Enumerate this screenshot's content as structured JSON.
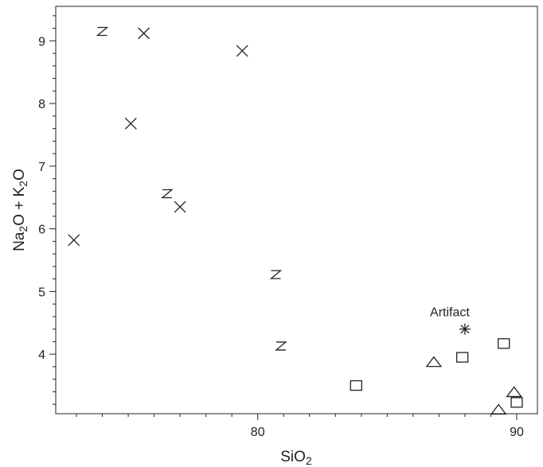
{
  "chart_data": {
    "type": "scatter",
    "xlabel": {
      "base": "SiO",
      "sub": "2"
    },
    "ylabel": {
      "p1": "Na",
      "s1": "2",
      "p2": "O + K",
      "s2": "2",
      "p3": "O"
    },
    "xlim": [
      72.2,
      90.8
    ],
    "ylim": [
      3.05,
      9.55
    ],
    "xticks": [
      80,
      90
    ],
    "xtick_labels": [
      "80",
      "90"
    ],
    "yticks": [
      4,
      5,
      6,
      7,
      8,
      9
    ],
    "ytick_labels": [
      "4",
      "5",
      "6",
      "7",
      "8",
      "9"
    ],
    "grid": false,
    "legend": "none",
    "series": [
      {
        "marker": "x",
        "points": [
          [
            72.9,
            5.82
          ],
          [
            75.1,
            7.68
          ],
          [
            75.6,
            9.12
          ],
          [
            77.0,
            6.35
          ],
          [
            79.4,
            8.84
          ]
        ]
      },
      {
        "marker": "Z",
        "points": [
          [
            74.0,
            9.15
          ],
          [
            76.5,
            6.56
          ],
          [
            80.7,
            5.27
          ],
          [
            80.9,
            4.13
          ]
        ]
      },
      {
        "marker": "square",
        "points": [
          [
            83.8,
            3.5
          ],
          [
            87.9,
            3.95
          ],
          [
            89.5,
            4.17
          ],
          [
            90.0,
            3.23
          ]
        ]
      },
      {
        "marker": "triangle",
        "points": [
          [
            86.8,
            3.88
          ],
          [
            89.3,
            3.12
          ],
          [
            89.9,
            3.4
          ]
        ]
      },
      {
        "marker": "asterisk",
        "points": [
          [
            88.0,
            4.4
          ]
        ]
      }
    ],
    "annotations": [
      {
        "text": "Artifact",
        "x": 88.0,
        "y": 4.4
      }
    ]
  }
}
